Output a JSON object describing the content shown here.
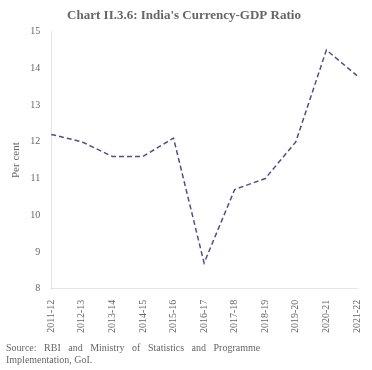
{
  "chart_data": {
    "type": "line",
    "title": "Chart II.3.6: India's Currency-GDP Ratio",
    "y_label": "Per cent",
    "categories": [
      "2011-12",
      "2012-13",
      "2013-14",
      "2014-15",
      "2015-16",
      "2016-17",
      "2017-18",
      "2018-19",
      "2019-20",
      "2020-21",
      "2021-22"
    ],
    "values": [
      12.2,
      12.0,
      11.6,
      11.6,
      12.1,
      8.7,
      10.7,
      11.0,
      12.0,
      14.5,
      13.8
    ],
    "color": "#5b4a8a",
    "line_style": "dashed",
    "ylim": [
      8,
      15
    ],
    "yticks": [
      8,
      9,
      10,
      11,
      12,
      13,
      14,
      15
    ],
    "grid": false,
    "annotations": [
      "Source:   RBI   and   Ministry   of   Statistics   and   Programme\nImplementation, GoI."
    ]
  }
}
